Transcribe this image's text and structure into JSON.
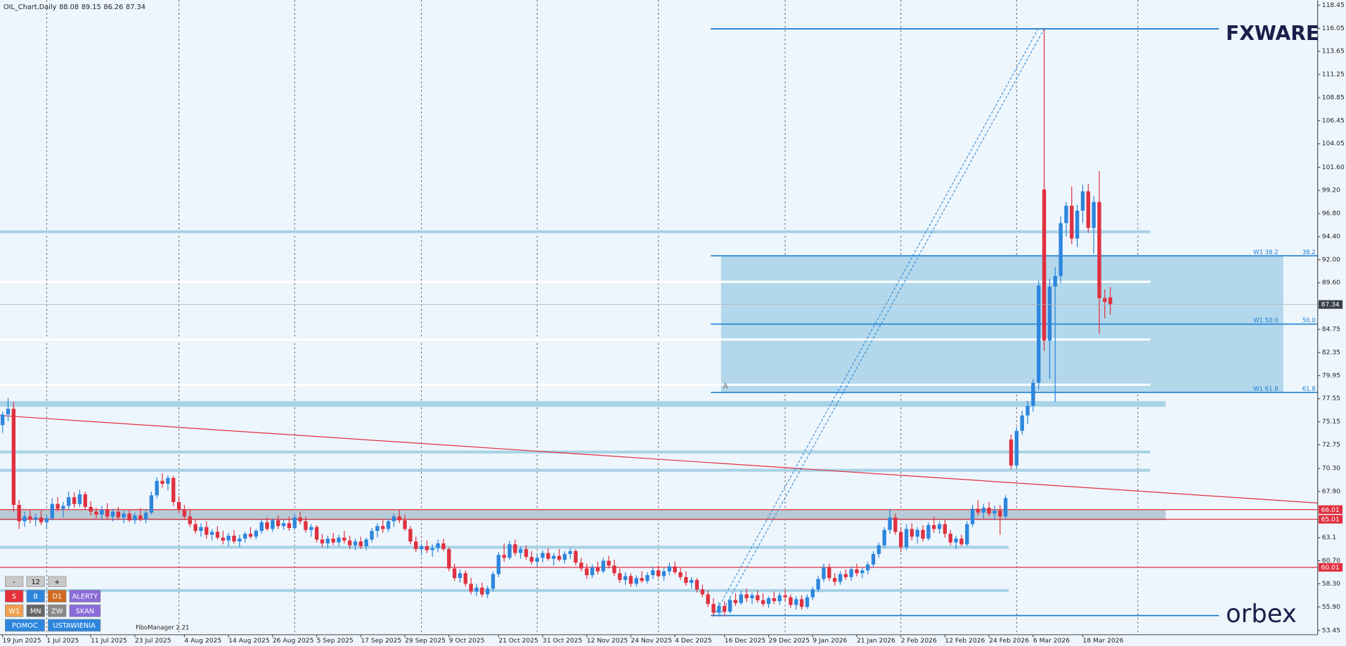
{
  "chart_data": {
    "type": "candlestick",
    "title": "OIL_Chart,Daily",
    "up_color": "#2d86dd",
    "down_color": "#e0303f",
    "ylim": [
      53.45,
      118.45
    ],
    "yticks": [
      118.45,
      116.05,
      113.65,
      111.25,
      108.85,
      106.45,
      104.05,
      {
        "value": 101.6,
        "label": "101.60"
      },
      {
        "value": 99.2,
        "label": "99.20"
      },
      {
        "value": 96.8,
        "label": "96.80"
      },
      {
        "value": 94.4,
        "label": "94.40"
      },
      {
        "value": 92.0,
        "label": "92.00"
      },
      {
        "value": 89.6,
        "label": "89.60"
      },
      84.75,
      82.35,
      79.95,
      77.55,
      75.15,
      72.75,
      {
        "value": 70.3,
        "label": "70.30"
      },
      {
        "value": 67.9,
        "label": "67.90"
      },
      63.1,
      {
        "value": 60.7,
        "label": "60.70"
      },
      {
        "value": 58.3,
        "label": "58.30"
      },
      {
        "value": 55.9,
        "label": "55.90"
      },
      53.45
    ],
    "xticks": [
      {
        "value": 0,
        "label": "19 Jun 2025"
      },
      {
        "value": 8,
        "label": "1 Jul 2025"
      },
      {
        "value": 16,
        "label": "11 Jul 2025"
      },
      {
        "value": 24,
        "label": "23 Jul 2025"
      },
      {
        "value": 33,
        "label": "4 Aug 2025"
      },
      {
        "value": 41,
        "label": "14 Aug 2025"
      },
      {
        "value": 49,
        "label": "26 Aug 2025"
      },
      {
        "value": 57,
        "label": "5 Sep 2025"
      },
      {
        "value": 65,
        "label": "17 Sep 2025"
      },
      {
        "value": 73,
        "label": "29 Sep 2025"
      },
      {
        "value": 81,
        "label": "9 Oct 2025"
      },
      {
        "value": 90,
        "label": "21 Oct 2025"
      },
      {
        "value": 98,
        "label": "31 Oct 2025"
      },
      {
        "value": 106,
        "label": "12 Nov 2025"
      },
      {
        "value": 114,
        "label": "24 Nov 2025"
      },
      {
        "value": 122,
        "label": "4 Dec 2025"
      },
      {
        "value": 131,
        "label": "16 Dec 2025"
      },
      {
        "value": 139,
        "label": "29 Dec 2025"
      },
      {
        "value": 147,
        "label": "9 Jan 2026"
      },
      {
        "value": 155,
        "label": "21 Jan 2026"
      },
      {
        "value": 163,
        "label": "2 Feb 2026"
      },
      {
        "value": 171,
        "label": "12 Feb 2026"
      },
      {
        "value": 179,
        "label": "24 Feb 2026"
      },
      {
        "value": 187,
        "label": "6 Mar 2026"
      },
      {
        "value": 196,
        "label": "18 Mar 2026"
      }
    ],
    "vgrid": [
      8,
      32,
      53,
      76,
      97,
      119,
      142,
      163,
      184,
      206
    ],
    "ohlc": [
      [
        74.8,
        76.2,
        74.0,
        75.9
      ],
      [
        75.9,
        77.6,
        75.2,
        76.5
      ],
      [
        76.5,
        77.2,
        65.8,
        66.5
      ],
      [
        66.5,
        67.0,
        64.0,
        64.8
      ],
      [
        64.8,
        65.8,
        64.2,
        65.3
      ],
      [
        65.3,
        66.0,
        64.6,
        65.0
      ],
      [
        65.0,
        65.6,
        64.3,
        65.2
      ],
      [
        65.2,
        65.9,
        64.4,
        64.7
      ],
      [
        64.7,
        65.5,
        64.0,
        65.1
      ],
      [
        65.1,
        67.2,
        64.9,
        66.6
      ],
      [
        66.6,
        67.3,
        65.8,
        66.1
      ],
      [
        66.1,
        66.8,
        65.2,
        66.4
      ],
      [
        66.4,
        67.9,
        66.0,
        67.3
      ],
      [
        67.3,
        67.8,
        66.2,
        66.6
      ],
      [
        66.6,
        68.1,
        66.3,
        67.6
      ],
      [
        67.6,
        67.9,
        66.0,
        66.3
      ],
      [
        66.3,
        66.9,
        65.4,
        65.8
      ],
      [
        65.8,
        66.2,
        65.1,
        65.5
      ],
      [
        65.5,
        66.4,
        64.9,
        66.0
      ],
      [
        66.0,
        66.7,
        65.0,
        65.3
      ],
      [
        65.3,
        66.1,
        64.8,
        65.8
      ],
      [
        65.8,
        66.3,
        65.0,
        65.2
      ],
      [
        65.2,
        65.9,
        64.6,
        65.6
      ],
      [
        65.6,
        66.0,
        64.7,
        64.9
      ],
      [
        64.9,
        65.7,
        64.5,
        65.4
      ],
      [
        65.4,
        66.2,
        64.8,
        65.0
      ],
      [
        65.0,
        66.0,
        64.6,
        65.7
      ],
      [
        65.7,
        67.9,
        65.5,
        67.5
      ],
      [
        67.5,
        69.4,
        67.2,
        69.0
      ],
      [
        69.0,
        69.8,
        68.3,
        68.7
      ],
      [
        68.7,
        69.6,
        68.0,
        69.3
      ],
      [
        69.3,
        69.5,
        66.4,
        66.8
      ],
      [
        66.8,
        67.4,
        65.6,
        66.0
      ],
      [
        66.0,
        66.5,
        64.9,
        65.3
      ],
      [
        65.3,
        66.1,
        64.2,
        64.5
      ],
      [
        64.5,
        65.0,
        63.5,
        63.8
      ],
      [
        63.8,
        64.6,
        63.2,
        64.2
      ],
      [
        64.2,
        64.8,
        63.0,
        63.4
      ],
      [
        63.4,
        64.0,
        62.8,
        63.7
      ],
      [
        63.7,
        64.3,
        62.9,
        63.1
      ],
      [
        63.1,
        63.8,
        62.4,
        62.8
      ],
      [
        62.8,
        63.6,
        62.2,
        63.3
      ],
      [
        63.3,
        63.9,
        62.5,
        62.7
      ],
      [
        62.7,
        63.4,
        62.1,
        63.0
      ],
      [
        63.0,
        63.7,
        62.6,
        63.5
      ],
      [
        63.5,
        64.2,
        63.0,
        63.2
      ],
      [
        63.2,
        64.0,
        62.9,
        63.8
      ],
      [
        63.8,
        65.0,
        63.5,
        64.7
      ],
      [
        64.7,
        65.2,
        63.8,
        64.0
      ],
      [
        64.0,
        65.1,
        63.7,
        64.9
      ],
      [
        64.9,
        65.4,
        64.0,
        64.3
      ],
      [
        64.3,
        65.0,
        63.9,
        64.6
      ],
      [
        64.6,
        65.3,
        63.8,
        64.1
      ],
      [
        64.1,
        65.6,
        63.9,
        65.2
      ],
      [
        65.2,
        65.8,
        64.5,
        64.8
      ],
      [
        64.8,
        65.3,
        63.6,
        63.9
      ],
      [
        63.9,
        64.5,
        63.2,
        64.2
      ],
      [
        64.2,
        64.4,
        62.6,
        62.9
      ],
      [
        62.9,
        63.5,
        62.1,
        62.5
      ],
      [
        62.5,
        63.3,
        62.0,
        63.0
      ],
      [
        63.0,
        63.6,
        62.3,
        62.6
      ],
      [
        62.6,
        63.4,
        62.2,
        63.1
      ],
      [
        63.1,
        63.8,
        62.5,
        62.8
      ],
      [
        62.8,
        63.3,
        61.9,
        62.3
      ],
      [
        62.3,
        63.0,
        61.8,
        62.7
      ],
      [
        62.7,
        63.2,
        61.9,
        62.2
      ],
      [
        62.2,
        63.1,
        61.8,
        62.9
      ],
      [
        62.9,
        64.1,
        62.6,
        63.8
      ],
      [
        63.8,
        64.6,
        63.1,
        64.3
      ],
      [
        64.3,
        65.0,
        63.6,
        64.0
      ],
      [
        64.0,
        65.1,
        63.7,
        64.8
      ],
      [
        64.8,
        65.6,
        64.2,
        65.3
      ],
      [
        65.3,
        66.0,
        64.6,
        64.9
      ],
      [
        64.9,
        65.5,
        63.8,
        64.0
      ],
      [
        64.0,
        64.3,
        62.4,
        62.7
      ],
      [
        62.7,
        63.2,
        61.6,
        61.9
      ],
      [
        61.9,
        62.5,
        61.2,
        62.2
      ],
      [
        62.2,
        62.8,
        61.5,
        61.8
      ],
      [
        61.8,
        62.4,
        61.1,
        62.0
      ],
      [
        62.0,
        62.9,
        61.6,
        62.5
      ],
      [
        62.5,
        63.0,
        61.7,
        61.9
      ],
      [
        61.9,
        62.1,
        59.6,
        59.9
      ],
      [
        59.9,
        60.4,
        58.6,
        58.9
      ],
      [
        58.9,
        59.8,
        58.4,
        59.4
      ],
      [
        59.4,
        59.7,
        58.0,
        58.3
      ],
      [
        58.3,
        58.9,
        57.2,
        57.5
      ],
      [
        57.5,
        58.3,
        57.0,
        57.9
      ],
      [
        57.9,
        58.4,
        56.9,
        57.2
      ],
      [
        57.2,
        58.1,
        56.8,
        57.8
      ],
      [
        57.8,
        59.6,
        57.5,
        59.3
      ],
      [
        59.3,
        61.6,
        59.0,
        61.3
      ],
      [
        61.3,
        62.5,
        60.6,
        61.0
      ],
      [
        61.0,
        62.8,
        60.8,
        62.4
      ],
      [
        62.4,
        62.9,
        61.2,
        61.5
      ],
      [
        61.5,
        62.2,
        60.9,
        61.9
      ],
      [
        61.9,
        62.3,
        60.8,
        61.1
      ],
      [
        61.1,
        61.7,
        60.3,
        60.6
      ],
      [
        60.6,
        61.4,
        60.1,
        61.0
      ],
      [
        61.0,
        61.8,
        60.5,
        61.5
      ],
      [
        61.5,
        62.0,
        60.7,
        60.9
      ],
      [
        60.9,
        61.5,
        60.2,
        61.2
      ],
      [
        61.2,
        61.9,
        60.6,
        60.8
      ],
      [
        60.8,
        61.7,
        60.4,
        61.4
      ],
      [
        61.4,
        62.0,
        60.9,
        61.7
      ],
      [
        61.7,
        61.9,
        60.2,
        60.5
      ],
      [
        60.5,
        61.0,
        59.6,
        59.9
      ],
      [
        59.9,
        60.4,
        58.8,
        59.2
      ],
      [
        59.2,
        60.3,
        58.9,
        60.0
      ],
      [
        60.0,
        60.6,
        59.3,
        59.6
      ],
      [
        59.6,
        61.0,
        59.4,
        60.7
      ],
      [
        60.7,
        61.2,
        59.9,
        60.2
      ],
      [
        60.2,
        60.8,
        59.1,
        59.4
      ],
      [
        59.4,
        59.9,
        58.4,
        58.7
      ],
      [
        58.7,
        59.5,
        58.2,
        59.1
      ],
      [
        59.1,
        59.4,
        58.0,
        58.3
      ],
      [
        58.3,
        59.2,
        58.0,
        58.9
      ],
      [
        58.9,
        59.6,
        58.4,
        58.6
      ],
      [
        58.6,
        59.5,
        58.3,
        59.2
      ],
      [
        59.2,
        60.1,
        58.8,
        59.7
      ],
      [
        59.7,
        60.2,
        58.9,
        59.1
      ],
      [
        59.1,
        59.9,
        58.6,
        59.6
      ],
      [
        59.6,
        60.5,
        59.2,
        60.1
      ],
      [
        60.1,
        60.6,
        59.3,
        59.5
      ],
      [
        59.5,
        60.0,
        58.7,
        59.0
      ],
      [
        59.0,
        59.6,
        58.1,
        58.4
      ],
      [
        58.4,
        59.0,
        57.8,
        58.7
      ],
      [
        58.7,
        58.9,
        57.4,
        57.7
      ],
      [
        57.7,
        58.2,
        56.9,
        57.2
      ],
      [
        57.2,
        57.6,
        55.9,
        56.2
      ],
      [
        56.2,
        56.8,
        54.9,
        55.3
      ],
      [
        55.3,
        56.4,
        55.0,
        56.0
      ],
      [
        56.0,
        56.5,
        54.9,
        55.4
      ],
      [
        55.4,
        56.9,
        55.2,
        56.6
      ],
      [
        56.6,
        57.3,
        56.0,
        56.3
      ],
      [
        56.3,
        57.6,
        56.1,
        57.2
      ],
      [
        57.2,
        57.8,
        56.4,
        56.8
      ],
      [
        56.8,
        57.4,
        56.2,
        57.1
      ],
      [
        57.1,
        57.6,
        56.3,
        56.6
      ],
      [
        56.6,
        57.3,
        55.9,
        56.2
      ],
      [
        56.2,
        57.0,
        55.8,
        56.8
      ],
      [
        56.8,
        57.5,
        56.2,
        56.5
      ],
      [
        56.5,
        57.4,
        56.1,
        57.1
      ],
      [
        57.1,
        57.7,
        56.5,
        56.9
      ],
      [
        56.9,
        57.2,
        55.8,
        56.1
      ],
      [
        56.1,
        57.0,
        55.6,
        56.7
      ],
      [
        56.7,
        57.1,
        55.6,
        55.9
      ],
      [
        55.9,
        57.2,
        55.7,
        56.9
      ],
      [
        56.9,
        58.0,
        56.6,
        57.7
      ],
      [
        57.7,
        59.1,
        57.4,
        58.8
      ],
      [
        58.8,
        60.4,
        58.5,
        60.0
      ],
      [
        60.0,
        60.4,
        58.6,
        58.9
      ],
      [
        58.9,
        59.4,
        58.1,
        58.5
      ],
      [
        58.5,
        59.6,
        58.2,
        59.3
      ],
      [
        59.3,
        59.8,
        58.7,
        59.0
      ],
      [
        59.0,
        60.1,
        58.6,
        59.8
      ],
      [
        59.8,
        60.4,
        59.1,
        59.4
      ],
      [
        59.4,
        60.0,
        58.9,
        59.7
      ],
      [
        59.7,
        60.6,
        59.3,
        60.3
      ],
      [
        60.3,
        61.7,
        60.0,
        61.4
      ],
      [
        61.4,
        62.6,
        61.0,
        62.3
      ],
      [
        62.3,
        64.2,
        62.0,
        63.9
      ],
      [
        63.9,
        66.1,
        63.5,
        65.2
      ],
      [
        65.2,
        65.6,
        63.4,
        63.7
      ],
      [
        63.7,
        64.2,
        61.6,
        62.1
      ],
      [
        62.1,
        64.5,
        61.8,
        64.0
      ],
      [
        64.0,
        64.6,
        62.8,
        63.2
      ],
      [
        63.2,
        64.2,
        62.5,
        63.9
      ],
      [
        63.9,
        64.4,
        62.7,
        63.0
      ],
      [
        63.0,
        64.7,
        62.8,
        64.4
      ],
      [
        64.4,
        65.3,
        63.6,
        64.0
      ],
      [
        64.0,
        64.8,
        63.5,
        64.5
      ],
      [
        64.5,
        65.0,
        63.1,
        63.5
      ],
      [
        63.5,
        63.9,
        62.3,
        62.6
      ],
      [
        62.6,
        63.3,
        61.9,
        63.0
      ],
      [
        63.0,
        63.4,
        62.2,
        62.4
      ],
      [
        62.4,
        64.8,
        62.2,
        64.5
      ],
      [
        64.5,
        66.5,
        64.2,
        66.1
      ],
      [
        66.1,
        67.0,
        65.4,
        65.7
      ],
      [
        65.7,
        66.6,
        65.1,
        66.2
      ],
      [
        66.2,
        66.8,
        65.3,
        65.6
      ],
      [
        65.6,
        66.4,
        64.9,
        65.9
      ],
      [
        65.9,
        66.5,
        63.4,
        65.3
      ],
      [
        65.3,
        67.5,
        65.0,
        67.2
      ],
      [
        73.3,
        73.8,
        70.2,
        70.6
      ],
      [
        70.6,
        74.6,
        70.3,
        74.2
      ],
      [
        74.2,
        76.3,
        73.8,
        75.8
      ],
      [
        75.8,
        77.3,
        74.9,
        76.8
      ],
      [
        76.8,
        79.6,
        76.2,
        79.2
      ],
      [
        79.2,
        89.8,
        78.5,
        89.3
      ],
      [
        99.3,
        116.0,
        82.5,
        83.6
      ],
      [
        83.6,
        90.0,
        79.6,
        89.2
      ],
      [
        89.2,
        91.2,
        77.2,
        90.3
      ],
      [
        90.3,
        96.5,
        89.6,
        95.8
      ],
      [
        95.8,
        98.0,
        94.4,
        97.6
      ],
      [
        97.6,
        99.6,
        93.6,
        94.2
      ],
      [
        94.2,
        97.7,
        93.3,
        97.1
      ],
      [
        97.1,
        99.8,
        95.8,
        99.1
      ],
      [
        99.1,
        99.9,
        94.8,
        95.3
      ],
      [
        95.3,
        98.6,
        92.6,
        98.0
      ],
      [
        98.0,
        101.2,
        84.3,
        88.0
      ],
      [
        88.0,
        88.9,
        85.9,
        87.6
      ],
      [
        88.08,
        89.15,
        86.26,
        87.34
      ]
    ],
    "levels": [
      94.9,
      89.7,
      83.7,
      79.0,
      72.0,
      70.1,
      62.1,
      57.6
    ],
    "zones": [
      [
        76.7,
        77.3
      ],
      [
        64.9,
        66.0
      ]
    ],
    "red_levels": [
      66.01,
      65.01,
      60.01
    ],
    "trendline": [
      75.8,
      66.7
    ],
    "fibo": {
      "high": 116.0,
      "low": 55.0,
      "marker": "A",
      "levels": [
        {
          "price": 92.4,
          "name": "W1 38.2",
          "ratio": "38.2"
        },
        {
          "price": 85.3,
          "name": "W1 50.0",
          "ratio": "50.0"
        },
        {
          "price": 78.2,
          "name": "W1 61.8",
          "ratio": "61.8"
        }
      ]
    },
    "buttons": [
      [
        "-",
        "12",
        "+"
      ],
      [
        "S",
        "B",
        "D1",
        "ALERTY"
      ],
      [
        "W1",
        "MN",
        "ZW",
        "SKAN"
      ],
      [
        "POMOC",
        "USTAWIENIA"
      ]
    ],
    "button_colors": [
      [
        "#c8c8c8",
        "#c8c8c8",
        "#c8c8c8"
      ],
      [
        "#e5303a",
        "#2d86dd",
        "#d2691e",
        "#8a6bd8"
      ],
      [
        "#f0a050",
        "#666666",
        "#888888",
        "#8a6bd8"
      ],
      [
        "#2d86dd",
        "#2d86dd"
      ]
    ],
    "plugin": "FiboManager 2.21",
    "brand_top": "FXWARE",
    "brand_bottom": "orbex"
  }
}
